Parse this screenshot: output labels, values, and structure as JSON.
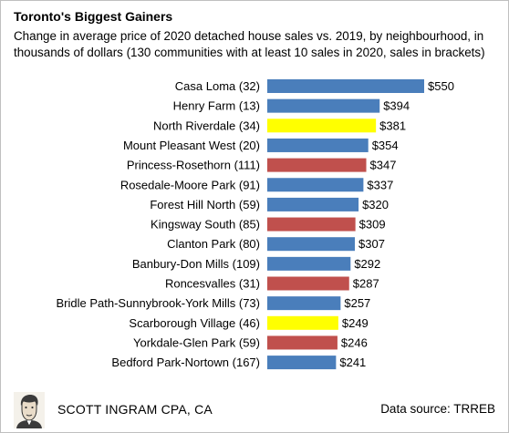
{
  "header": {
    "title": "Toronto's Biggest Gainers",
    "subtitle": "Change in average price of 2020 detached house sales vs. 2019, by neighbourhood, in thousands of dollars (130 communities with at least 10 sales in 2020, sales in brackets)"
  },
  "footer": {
    "author": "SCOTT INGRAM CPA, CA",
    "source": "Data source: TRREB"
  },
  "colors": {
    "blue": "#4a7ebb",
    "yellow": "#ffff00",
    "red": "#c0504d"
  },
  "chart_data": {
    "type": "bar",
    "orientation": "horizontal",
    "title": "Toronto's Biggest Gainers",
    "xlim": [
      0,
      550
    ],
    "grid": false,
    "categories": [
      "Casa Loma (32)",
      "Henry Farm (13)",
      "North Riverdale (34)",
      "Mount Pleasant West (20)",
      "Princess-Rosethorn (111)",
      "Rosedale-Moore Park (91)",
      "Forest Hill North (59)",
      "Kingsway South (85)",
      "Clanton Park (80)",
      "Banbury-Don Mills (109)",
      "Roncesvalles (31)",
      "Bridle Path-Sunnybrook-York Mills (73)",
      "Scarborough Village (46)",
      "Yorkdale-Glen Park (59)",
      "Bedford Park-Nortown (167)"
    ],
    "values": [
      550,
      394,
      381,
      354,
      347,
      337,
      320,
      309,
      307,
      292,
      287,
      257,
      249,
      246,
      241
    ],
    "value_labels": [
      "$550",
      "$394",
      "$381",
      "$354",
      "$347",
      "$337",
      "$320",
      "$309",
      "$307",
      "$292",
      "$287",
      "$257",
      "$249",
      "$246",
      "$241"
    ],
    "bar_colors": [
      "blue",
      "blue",
      "yellow",
      "blue",
      "red",
      "blue",
      "blue",
      "red",
      "blue",
      "blue",
      "red",
      "blue",
      "yellow",
      "red",
      "blue"
    ]
  }
}
